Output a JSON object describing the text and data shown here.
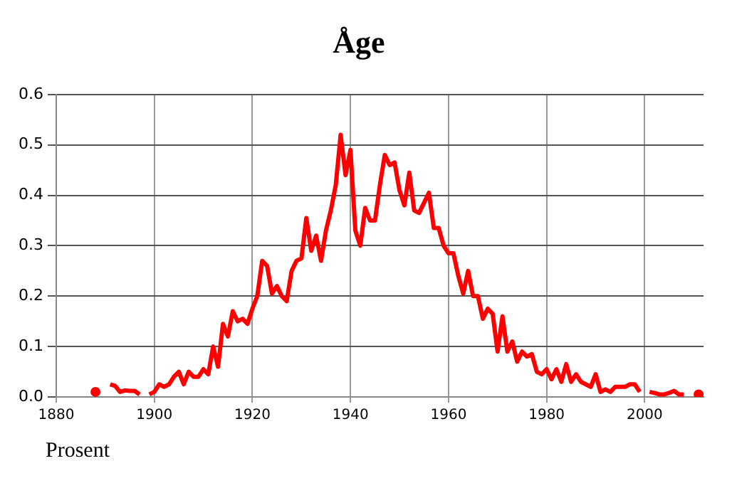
{
  "chart_data": {
    "type": "line",
    "title": "Åge",
    "xlabel": "Prosent",
    "x": [
      1888,
      1889,
      1890,
      1891,
      1892,
      1893,
      1894,
      1895,
      1896,
      1897,
      1898,
      1899,
      1900,
      1901,
      1902,
      1903,
      1904,
      1905,
      1906,
      1907,
      1908,
      1909,
      1910,
      1911,
      1912,
      1913,
      1914,
      1915,
      1916,
      1917,
      1918,
      1919,
      1920,
      1921,
      1922,
      1923,
      1924,
      1925,
      1926,
      1927,
      1928,
      1929,
      1930,
      1931,
      1932,
      1933,
      1934,
      1935,
      1936,
      1937,
      1938,
      1939,
      1940,
      1941,
      1942,
      1943,
      1944,
      1945,
      1946,
      1947,
      1948,
      1949,
      1950,
      1951,
      1952,
      1953,
      1954,
      1955,
      1956,
      1957,
      1958,
      1959,
      1960,
      1961,
      1962,
      1963,
      1964,
      1965,
      1966,
      1967,
      1968,
      1969,
      1970,
      1971,
      1972,
      1973,
      1974,
      1975,
      1976,
      1977,
      1978,
      1979,
      1980,
      1981,
      1982,
      1983,
      1984,
      1985,
      1986,
      1987,
      1988,
      1989,
      1990,
      1991,
      1992,
      1993,
      1994,
      1995,
      1996,
      1997,
      1998,
      1999,
      2000,
      2001,
      2002,
      2003,
      2004,
      2005,
      2006,
      2007,
      2008,
      2009,
      2010,
      2011
    ],
    "series": [
      {
        "color": "#ff0000",
        "values": [
          0.01,
          null,
          null,
          0.025,
          0.022,
          0.01,
          0.013,
          0.012,
          0.012,
          0.005,
          null,
          0.005,
          0.01,
          0.025,
          0.02,
          0.025,
          0.04,
          0.05,
          0.025,
          0.05,
          0.04,
          0.04,
          0.055,
          0.045,
          0.1,
          0.06,
          0.145,
          0.12,
          0.17,
          0.15,
          0.155,
          0.145,
          0.175,
          0.2,
          0.27,
          0.26,
          0.205,
          0.22,
          0.2,
          0.19,
          0.25,
          0.27,
          0.275,
          0.355,
          0.29,
          0.32,
          0.27,
          0.33,
          0.37,
          0.42,
          0.52,
          0.44,
          0.49,
          0.33,
          0.3,
          0.375,
          0.35,
          0.35,
          0.42,
          0.48,
          0.46,
          0.465,
          0.41,
          0.38,
          0.445,
          0.37,
          0.365,
          0.385,
          0.405,
          0.335,
          0.335,
          0.3,
          0.285,
          0.285,
          0.24,
          0.205,
          0.25,
          0.2,
          0.2,
          0.155,
          0.175,
          0.165,
          0.09,
          0.16,
          0.09,
          0.11,
          0.07,
          0.09,
          0.08,
          0.085,
          0.05,
          0.045,
          0.055,
          0.035,
          0.055,
          0.03,
          0.065,
          0.03,
          0.045,
          0.03,
          0.025,
          0.02,
          0.045,
          0.01,
          0.015,
          0.01,
          0.02,
          0.02,
          0.02,
          0.025,
          0.025,
          0.01,
          null,
          0.01,
          0.008,
          0.005,
          0.005,
          0.008,
          0.012,
          0.005,
          0.005,
          null,
          null,
          0.005
        ]
      }
    ],
    "xlim": [
      1880,
      2012
    ],
    "xticks": [
      1880,
      1900,
      1920,
      1940,
      1960,
      1980,
      2000
    ],
    "ylim": [
      0,
      0.6
    ],
    "yticks": [
      {
        "value": 0,
        "label": "0.0"
      },
      0.1,
      0.2,
      0.3,
      0.4,
      0.5,
      0.6
    ],
    "grid": true,
    "legend": false
  }
}
